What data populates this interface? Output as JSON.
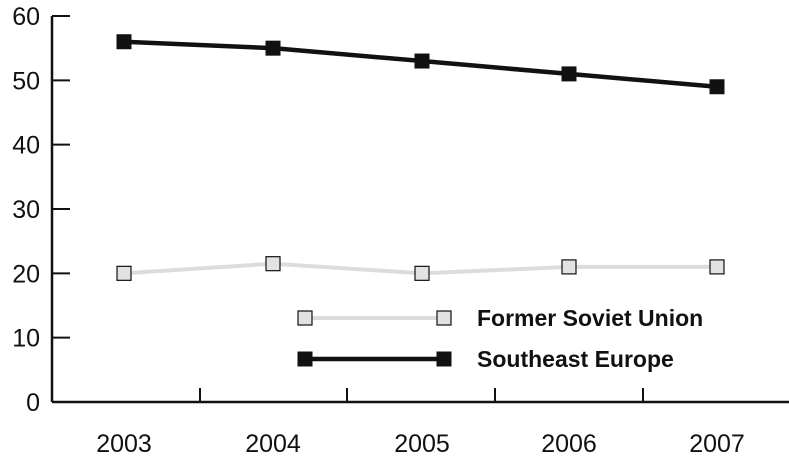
{
  "chart_data": {
    "type": "line",
    "title": "",
    "xlabel": "",
    "ylabel": "",
    "categories": [
      "2003",
      "2004",
      "2005",
      "2006",
      "2007"
    ],
    "ylim": [
      0,
      60
    ],
    "yticks": [
      0,
      10,
      20,
      30,
      40,
      50,
      60
    ],
    "grid": false,
    "legend_position": "inside-lower-right",
    "series": [
      {
        "name": "Former Soviet Union",
        "values": [
          20,
          21.5,
          20,
          21,
          21
        ],
        "color": "#dcdcdc",
        "marker_fill": "#e2e2e2",
        "marker_stroke": "#111111"
      },
      {
        "name": "Southeast Europe",
        "values": [
          56,
          55,
          53,
          51,
          49
        ],
        "color": "#111111",
        "marker_fill": "#111111",
        "marker_stroke": "#111111"
      }
    ]
  }
}
